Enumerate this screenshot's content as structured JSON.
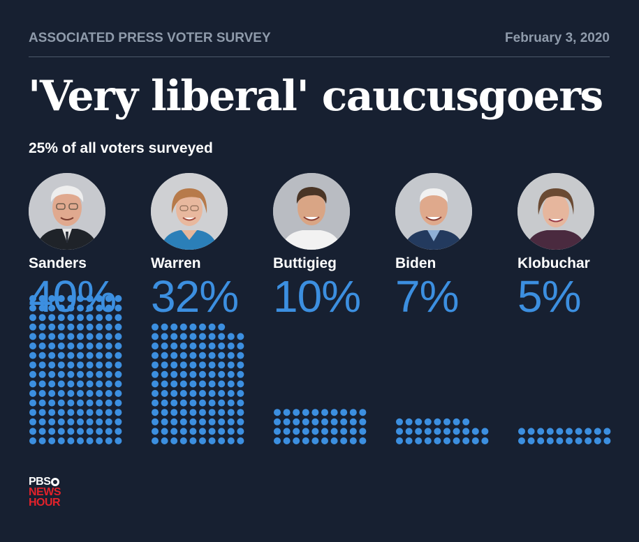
{
  "header": {
    "source": "ASSOCIATED PRESS VOTER SURVEY",
    "date": "February 3, 2020"
  },
  "title": "'Very liberal' caucusgoers",
  "subtitle": "25% of all voters surveyed",
  "colors": {
    "background": "#172031",
    "accent": "#3c8fe0",
    "muted": "#8f9bab",
    "logo_red": "#e3222b"
  },
  "candidates": [
    {
      "name": "Sanders",
      "percent_label": "40%",
      "value": 40,
      "photo": "sanders-portrait"
    },
    {
      "name": "Warren",
      "percent_label": "32%",
      "value": 32,
      "photo": "warren-portrait"
    },
    {
      "name": "Buttigieg",
      "percent_label": "10%",
      "value": 10,
      "photo": "buttigieg-portrait"
    },
    {
      "name": "Biden",
      "percent_label": "7%",
      "value": 7,
      "photo": "biden-portrait"
    },
    {
      "name": "Klobuchar",
      "percent_label": "5%",
      "value": 5,
      "photo": "klobuchar-portrait"
    }
  ],
  "chart_data": {
    "type": "bar",
    "style": "dot-matrix",
    "title": "'Very liberal' caucusgoers",
    "subtitle": "25% of all voters surveyed",
    "categories": [
      "Sanders",
      "Warren",
      "Buttigieg",
      "Biden",
      "Klobuchar"
    ],
    "values": [
      40,
      32,
      10,
      7,
      5
    ],
    "value_labels": [
      "40%",
      "32%",
      "10%",
      "7%",
      "5%"
    ],
    "units": "percent",
    "dots_per_percent": 4
  },
  "logo": {
    "line1": "PBS",
    "line2": "NEWS",
    "line3": "HOUR"
  }
}
